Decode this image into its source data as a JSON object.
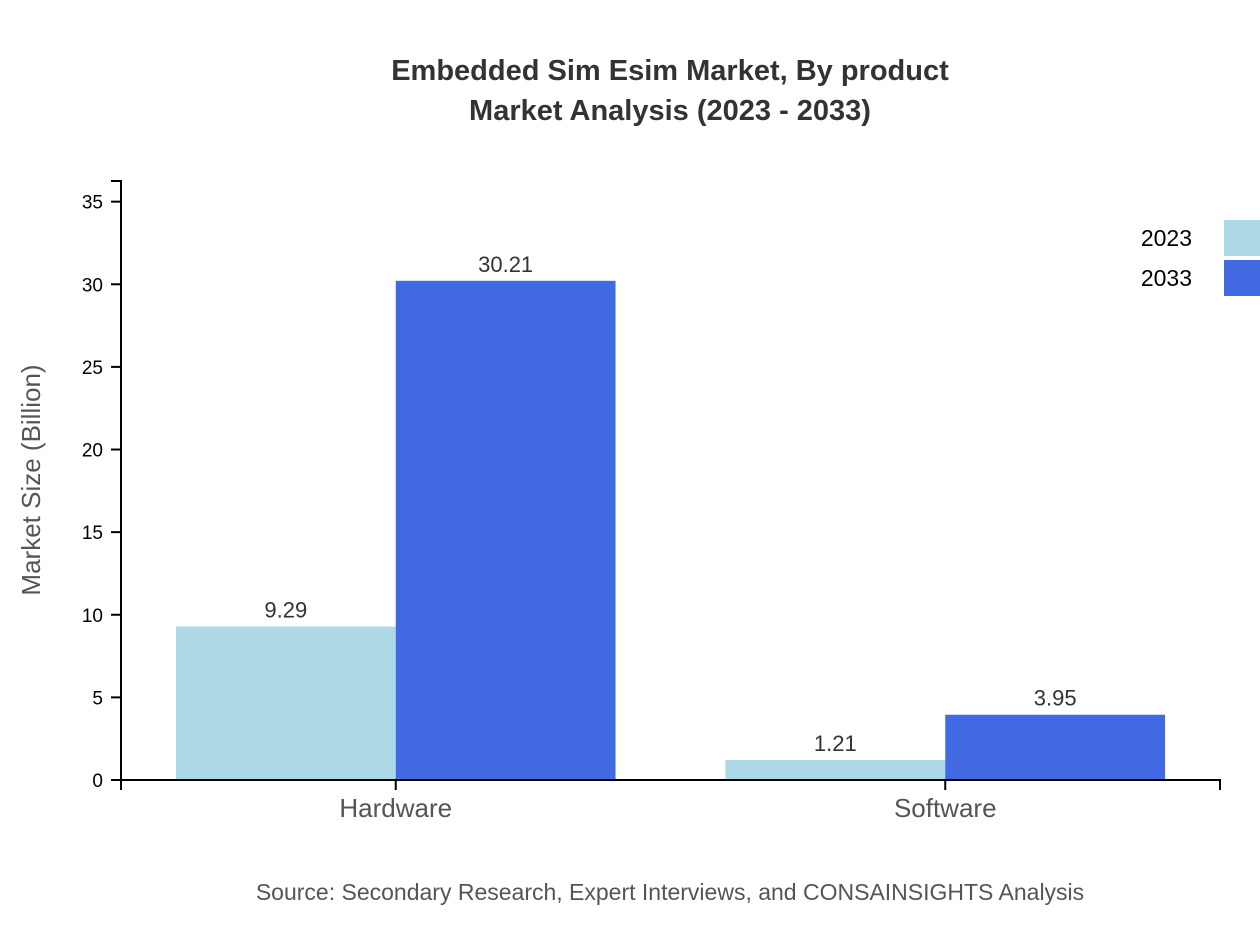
{
  "chart_data": {
    "type": "bar",
    "title_lines": [
      "Embedded Sim Esim Market, By product",
      "Market Analysis (2023 - 2033)"
    ],
    "ylabel": "Market Size (Billion)",
    "xlabel": "",
    "categories": [
      "Hardware",
      "Software"
    ],
    "series": [
      {
        "name": "2023",
        "values": [
          9.29,
          1.21
        ],
        "color": "#ADD8E6"
      },
      {
        "name": "2033",
        "values": [
          30.21,
          3.95
        ],
        "color": "#4169E1"
      }
    ],
    "ylim": [
      0,
      36.25
    ],
    "yticks": [
      0,
      5,
      10,
      15,
      20,
      25,
      30,
      35
    ],
    "grid": false,
    "legend_position": "top-right",
    "source": "Source: Secondary Research, Expert Interviews, and CONSAINSIGHTS Analysis"
  }
}
